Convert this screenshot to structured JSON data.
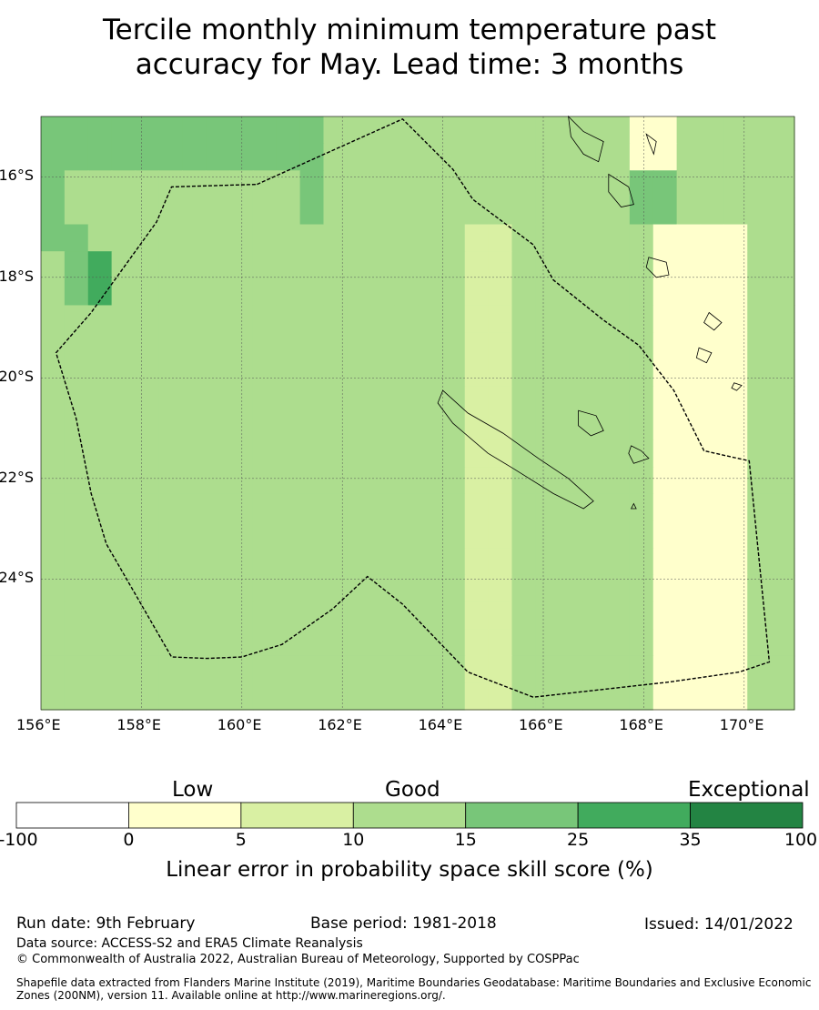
{
  "title_line1": "Tercile monthly minimum temperature past",
  "title_line2": "accuracy for May. Lead time: 3 months",
  "map": {
    "lon_range": [
      156,
      171
    ],
    "lat_range": [
      -26.6,
      -14.8
    ],
    "lon_ticks": [
      "156°E",
      "158°E",
      "160°E",
      "162°E",
      "164°E",
      "166°E",
      "168°E",
      "170°E"
    ],
    "lat_ticks": [
      "16°S",
      "18°S",
      "20°S",
      "22°S",
      "24°S"
    ],
    "cell_size_deg": 0.5556,
    "grid_rows": [
      "44444444444433333333333331133333",
      "44444444444433333333333331133333",
      "43333333333433333333333334433333",
      "43333333333433333333333334433333",
      "44333333333333333322333333111133",
      "34533333333333333322333333111133",
      "34533333333333333322333333111133",
      "33333333333333333322333333111133",
      "33333333333333333322333333111133",
      "33333333333333333322333333111133",
      "33333333333333333322333333111133",
      "33333333333333333322333333111133",
      "33333333333333333322333333111133",
      "33333333333333333322333333111133",
      "33333333333333333322333333111133",
      "33333333333333333322333333111133",
      "33333333333333333322333333111133",
      "33333333333333333322333333111133",
      "33333333333333333322333333111133",
      "33333333333333333322333333111133",
      "33333333333333333322333333111133",
      "33333333333333333322333333111133"
    ],
    "boundary": [
      [
        160.3,
        -16.15
      ],
      [
        163.2,
        -14.85
      ],
      [
        164.2,
        -15.85
      ],
      [
        164.6,
        -16.45
      ],
      [
        165.8,
        -17.35
      ],
      [
        166.2,
        -18.05
      ],
      [
        167.2,
        -18.85
      ],
      [
        167.9,
        -19.35
      ],
      [
        168.6,
        -20.25
      ],
      [
        169.2,
        -21.45
      ],
      [
        170.1,
        -21.65
      ],
      [
        170.5,
        -25.65
      ],
      [
        169.9,
        -25.85
      ],
      [
        168.5,
        -26.05
      ],
      [
        165.8,
        -26.35
      ],
      [
        164.5,
        -25.85
      ],
      [
        163.2,
        -24.5
      ],
      [
        162.5,
        -23.95
      ],
      [
        161.8,
        -24.6
      ],
      [
        160.8,
        -25.3
      ],
      [
        160.0,
        -25.55
      ],
      [
        159.3,
        -25.58
      ],
      [
        158.6,
        -25.55
      ],
      [
        157.3,
        -23.3
      ],
      [
        157.0,
        -22.3
      ],
      [
        156.7,
        -20.8
      ],
      [
        156.3,
        -19.5
      ],
      [
        157.0,
        -18.7
      ],
      [
        158.3,
        -16.9
      ],
      [
        158.6,
        -16.2
      ],
      [
        160.3,
        -16.15
      ]
    ],
    "islands": [
      [
        [
          164.0,
          -20.25
        ],
        [
          164.5,
          -20.7
        ],
        [
          165.2,
          -21.1
        ],
        [
          165.9,
          -21.6
        ],
        [
          166.5,
          -22.0
        ],
        [
          167.0,
          -22.45
        ],
        [
          166.8,
          -22.6
        ],
        [
          166.2,
          -22.3
        ],
        [
          165.4,
          -21.8
        ],
        [
          164.9,
          -21.5
        ],
        [
          164.2,
          -20.9
        ],
        [
          163.9,
          -20.5
        ]
      ],
      [
        [
          166.7,
          -20.65
        ],
        [
          167.05,
          -20.75
        ],
        [
          167.2,
          -21.05
        ],
        [
          166.95,
          -21.15
        ],
        [
          166.7,
          -20.95
        ]
      ],
      [
        [
          167.75,
          -21.35
        ],
        [
          167.95,
          -21.45
        ],
        [
          168.1,
          -21.6
        ],
        [
          167.8,
          -21.7
        ],
        [
          167.7,
          -21.5
        ]
      ],
      [
        [
          166.5,
          -14.8
        ],
        [
          166.8,
          -15.1
        ],
        [
          167.2,
          -15.3
        ],
        [
          167.1,
          -15.7
        ],
        [
          166.8,
          -15.55
        ],
        [
          166.55,
          -15.2
        ]
      ],
      [
        [
          167.3,
          -15.95
        ],
        [
          167.7,
          -16.2
        ],
        [
          167.8,
          -16.55
        ],
        [
          167.55,
          -16.6
        ],
        [
          167.3,
          -16.3
        ]
      ],
      [
        [
          168.05,
          -15.15
        ],
        [
          168.25,
          -15.3
        ],
        [
          168.2,
          -15.55
        ],
        [
          168.1,
          -15.3
        ]
      ],
      [
        [
          168.1,
          -17.6
        ],
        [
          168.45,
          -17.7
        ],
        [
          168.5,
          -17.95
        ],
        [
          168.25,
          -18.0
        ],
        [
          168.05,
          -17.8
        ]
      ],
      [
        [
          169.3,
          -18.7
        ],
        [
          169.55,
          -18.9
        ],
        [
          169.4,
          -19.05
        ],
        [
          169.2,
          -18.9
        ]
      ],
      [
        [
          169.1,
          -19.4
        ],
        [
          169.35,
          -19.5
        ],
        [
          169.25,
          -19.7
        ],
        [
          169.05,
          -19.6
        ]
      ],
      [
        [
          169.8,
          -20.1
        ],
        [
          169.95,
          -20.15
        ],
        [
          169.85,
          -20.25
        ],
        [
          169.75,
          -20.2
        ]
      ],
      [
        [
          167.8,
          -22.5
        ],
        [
          167.85,
          -22.6
        ],
        [
          167.75,
          -22.6
        ]
      ]
    ]
  },
  "colorbar": {
    "categories": {
      "low": "Low",
      "good": "Good",
      "exceptional": "Exceptional"
    },
    "ticks": [
      "-100",
      "0",
      "5",
      "10",
      "15",
      "25",
      "35",
      "100"
    ],
    "colors": [
      "#ffffff",
      "#ffffcc",
      "#d9f0a3",
      "#addd8e",
      "#78c679",
      "#41ab5d",
      "#238443"
    ],
    "label": "Linear error in probability space skill score (%)"
  },
  "footer": {
    "run_date": "Run date: 9th February",
    "base_period": "Base period: 1981-2018",
    "issued": "Issued: 14/01/2022",
    "data_source": "Data source: ACCESS-S2 and ERA5 Climate Reanalysis",
    "copyright": "© Commonwealth of Australia 2022, Australian Bureau of Meteorology, Supported by COSPPac",
    "shapefile": "Shapefile data extracted from Flanders Marine Institute (2019), Maritime Boundaries Geodatabase: Maritime Boundaries and Exclusive Economic Zones (200NM), version 11. Available online at http://www.marineregions.org/."
  }
}
